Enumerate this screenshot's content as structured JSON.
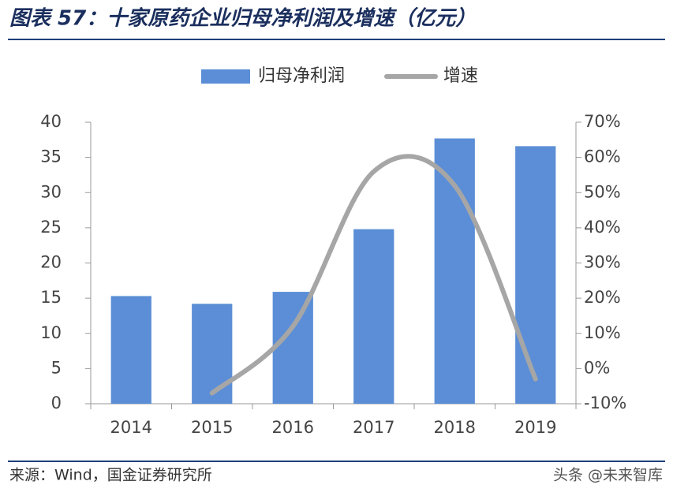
{
  "chart_data": {
    "type": "bar",
    "title": "图表 57：十家原药企业归母净利润及增速（亿元）",
    "categories": [
      "2014",
      "2015",
      "2016",
      "2017",
      "2018",
      "2019"
    ],
    "series": [
      {
        "name": "归母净利润",
        "type": "bar",
        "color": "#5b8ed6",
        "values": [
          15.3,
          14.2,
          15.9,
          24.8,
          37.7,
          36.6
        ]
      },
      {
        "name": "增速",
        "type": "line",
        "color": "#a6a6a6",
        "axis": "y2",
        "values": [
          null,
          -7,
          12,
          56,
          52,
          -3
        ]
      }
    ],
    "ylim": [
      0,
      40
    ],
    "yticks": [
      0,
      5,
      10,
      15,
      20,
      25,
      30,
      35,
      40
    ],
    "y2lim": [
      -10,
      70
    ],
    "y2ticks": [
      {
        "value": -10,
        "label": "-10%"
      },
      {
        "value": 0,
        "label": "0%"
      },
      {
        "value": 10,
        "label": "10%"
      },
      {
        "value": 20,
        "label": "20%"
      },
      {
        "value": 30,
        "label": "30%"
      },
      {
        "value": 40,
        "label": "40%"
      },
      {
        "value": 50,
        "label": "50%"
      },
      {
        "value": 60,
        "label": "60%"
      },
      {
        "value": 70,
        "label": "70%"
      }
    ],
    "source": "来源：Wind，国金证券研究所",
    "watermark": "头条 @未来智库"
  }
}
